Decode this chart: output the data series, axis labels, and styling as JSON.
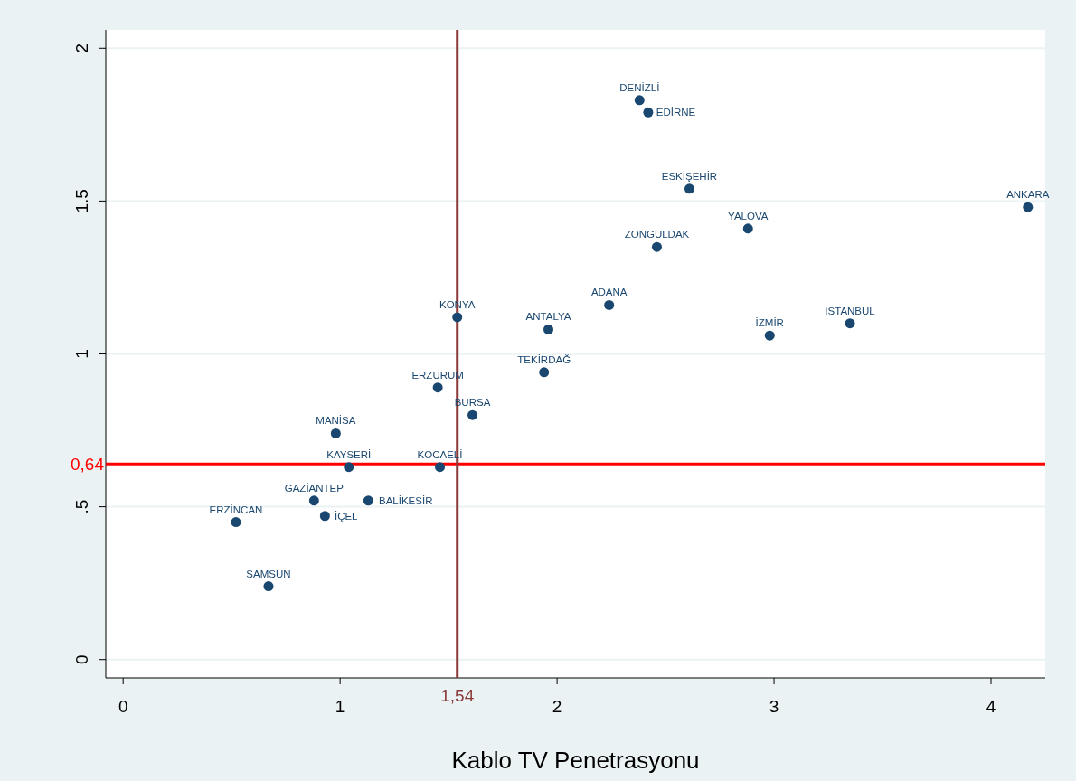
{
  "chart_data": {
    "type": "scatter",
    "xlabel": "Kablo TV Penetrasyonu",
    "x": [
      0.52,
      0.67,
      0.88,
      0.93,
      1.13,
      1.04,
      0.98,
      1.46,
      1.45,
      1.61,
      1.54,
      1.94,
      1.96,
      2.24,
      2.46,
      2.38,
      2.42,
      2.61,
      2.88,
      2.98,
      3.35,
      4.17
    ],
    "series": [
      {
        "color": "#1a476f",
        "values": [
          0.45,
          0.24,
          0.52,
          0.47,
          0.52,
          0.63,
          0.74,
          0.63,
          0.89,
          0.8,
          1.12,
          0.94,
          1.08,
          1.16,
          1.35,
          1.83,
          1.79,
          1.54,
          1.41,
          1.06,
          1.1,
          1.48
        ]
      }
    ],
    "annotations": [
      {
        "text": "ERZİNCAN",
        "x": 0.52,
        "y": 0.45
      },
      {
        "text": "SAMSUN",
        "x": 0.67,
        "y": 0.24
      },
      {
        "text": "GAZİANTEP",
        "x": 0.88,
        "y": 0.52
      },
      {
        "text": "İÇEL",
        "x": 0.93,
        "y": 0.47
      },
      {
        "text": "BALİKESİR",
        "x": 1.13,
        "y": 0.52
      },
      {
        "text": "KAYSERİ",
        "x": 1.04,
        "y": 0.63
      },
      {
        "text": "MANİSA",
        "x": 0.98,
        "y": 0.74
      },
      {
        "text": "KOCAELİ",
        "x": 1.46,
        "y": 0.63
      },
      {
        "text": "ERZURUM",
        "x": 1.45,
        "y": 0.89
      },
      {
        "text": "BURSA",
        "x": 1.61,
        "y": 0.8
      },
      {
        "text": "KONYA",
        "x": 1.54,
        "y": 1.12
      },
      {
        "text": "TEKİRDAĞ",
        "x": 1.94,
        "y": 0.94
      },
      {
        "text": "ANTALYA",
        "x": 1.96,
        "y": 1.08
      },
      {
        "text": "ADANA",
        "x": 2.24,
        "y": 1.16
      },
      {
        "text": "ZONGULDAK",
        "x": 2.46,
        "y": 1.35
      },
      {
        "text": "DENİZLİ",
        "x": 2.38,
        "y": 1.83
      },
      {
        "text": "EDİRNE",
        "x": 2.42,
        "y": 1.79
      },
      {
        "text": "ESKİŞEHİR",
        "x": 2.61,
        "y": 1.54
      },
      {
        "text": "YALOVA",
        "x": 2.88,
        "y": 1.41
      },
      {
        "text": "İZMİR",
        "x": 2.98,
        "y": 1.06
      },
      {
        "text": "İSTANBUL",
        "x": 3.35,
        "y": 1.1
      },
      {
        "text": "ANKARA",
        "x": 4.17,
        "y": 1.48
      }
    ],
    "xlim": [
      -0.08,
      4.25
    ],
    "ylim": [
      -0.06,
      2.06
    ],
    "xticks": [
      0,
      1,
      2,
      3,
      4
    ],
    "yticks": [
      0,
      {
        "value": 0.5,
        "label": ".5"
      },
      1,
      1.5,
      2
    ],
    "grid": "y",
    "marker": "circle",
    "ref_lines": [
      {
        "axis": "y",
        "value": 0.64,
        "label": "0,64",
        "color": "#ff0000"
      },
      {
        "axis": "x",
        "value": 1.54,
        "label": "1,54",
        "color": "#8b3a3a"
      }
    ]
  }
}
